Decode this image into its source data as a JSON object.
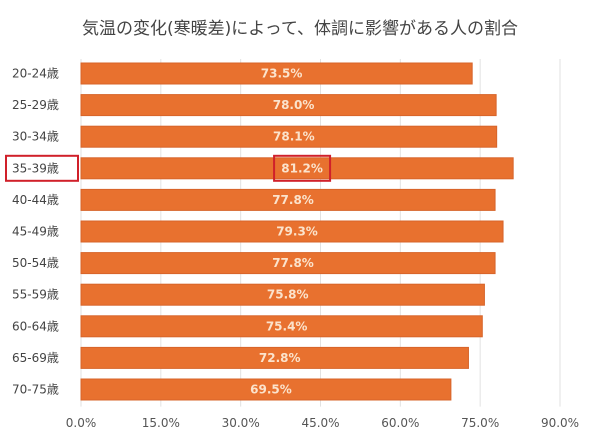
{
  "chart_data": {
    "type": "bar",
    "orientation": "horizontal",
    "title": "気温の変化(寒暖差)によって、体調に影響がある人の割合",
    "categories": [
      "20-24歳",
      "25-29歳",
      "30-34歳",
      "35-39歳",
      "40-44歳",
      "45-49歳",
      "50-54歳",
      "55-59歳",
      "60-64歳",
      "65-69歳",
      "70-75歳"
    ],
    "values": [
      73.5,
      78.0,
      78.1,
      81.2,
      77.8,
      79.3,
      77.8,
      75.8,
      75.4,
      72.8,
      69.5
    ],
    "value_labels": [
      "73.5%",
      "78.0%",
      "78.1%",
      "81.2%",
      "77.8%",
      "79.3%",
      "77.8%",
      "75.8%",
      "75.4%",
      "72.8%",
      "69.5%"
    ],
    "xticks": [
      0,
      15,
      30,
      45,
      60,
      75,
      90
    ],
    "xtick_labels": [
      "0.0%",
      "15.0%",
      "30.0%",
      "45.0%",
      "60.0%",
      "75.0%",
      "90.0%"
    ],
    "xlim": [
      0,
      90
    ],
    "highlighted_category": "35-39歳",
    "grid": true,
    "colors": {
      "bar": "#e8712f",
      "highlight_box": "#d0202a",
      "grid": "#e2e2e2"
    }
  }
}
